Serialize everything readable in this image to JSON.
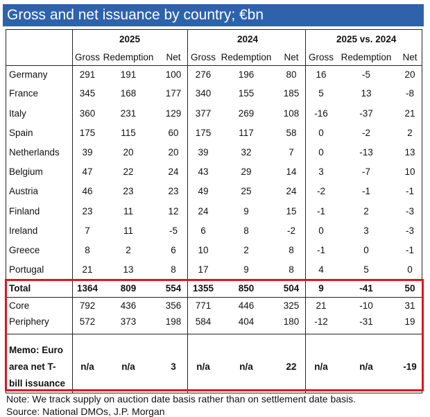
{
  "title": "Gross and net issuance by country; €bn",
  "groups": [
    "2025",
    "2024",
    "2025 vs. 2024"
  ],
  "subheaders": [
    "Gross",
    "Redemption",
    "Net",
    "Gross",
    "Redemption",
    "Net",
    "Gross",
    "Redemption",
    "Net"
  ],
  "rows": [
    {
      "label": "Germany",
      "values": [
        "291",
        "191",
        "100",
        "276",
        "196",
        "80",
        "16",
        "-5",
        "20"
      ]
    },
    {
      "label": "France",
      "values": [
        "345",
        "168",
        "177",
        "340",
        "155",
        "185",
        "5",
        "13",
        "-8"
      ]
    },
    {
      "label": "Italy",
      "values": [
        "360",
        "231",
        "129",
        "377",
        "269",
        "108",
        "-16",
        "-37",
        "21"
      ]
    },
    {
      "label": "Spain",
      "values": [
        "175",
        "115",
        "60",
        "175",
        "117",
        "58",
        "0",
        "-2",
        "2"
      ]
    },
    {
      "label": "Netherlands",
      "values": [
        "39",
        "20",
        "20",
        "39",
        "32",
        "7",
        "0",
        "-13",
        "13"
      ]
    },
    {
      "label": "Belgium",
      "values": [
        "47",
        "22",
        "24",
        "43",
        "29",
        "14",
        "3",
        "-7",
        "10"
      ]
    },
    {
      "label": "Austria",
      "values": [
        "46",
        "23",
        "23",
        "49",
        "25",
        "24",
        "-2",
        "-1",
        "-1"
      ]
    },
    {
      "label": "Finland",
      "values": [
        "23",
        "11",
        "12",
        "24",
        "9",
        "15",
        "-1",
        "2",
        "-3"
      ]
    },
    {
      "label": "Ireland",
      "values": [
        "7",
        "11",
        "-5",
        "6",
        "8",
        "-2",
        "0",
        "3",
        "-3"
      ]
    },
    {
      "label": "Greece",
      "values": [
        "8",
        "2",
        "6",
        "10",
        "2",
        "8",
        "-1",
        "0",
        "-1"
      ]
    },
    {
      "label": "Portugal",
      "values": [
        "21",
        "13",
        "8",
        "17",
        "9",
        "8",
        "4",
        "5",
        "0"
      ]
    }
  ],
  "total": {
    "label": "Total",
    "values": [
      "1364",
      "809",
      "554",
      "1355",
      "850",
      "504",
      "9",
      "-41",
      "50"
    ]
  },
  "subrows": [
    {
      "label": "Core",
      "values": [
        "792",
        "436",
        "356",
        "771",
        "446",
        "325",
        "21",
        "-10",
        "31"
      ]
    },
    {
      "label": "Periphery",
      "values": [
        "572",
        "373",
        "198",
        "584",
        "404",
        "180",
        "-12",
        "-31",
        "19"
      ]
    }
  ],
  "memo": {
    "label_lines": [
      "Memo: Euro",
      "area net T-",
      "bill issuance"
    ],
    "values": [
      "n/a",
      "n/a",
      "3",
      "n/a",
      "n/a",
      "22",
      "n/a",
      "n/a",
      "-19"
    ]
  },
  "note": "Note: We track supply on auction date basis rather than on settlement date basis.",
  "source": "Source: National DMOs, J.P. Morgan",
  "colors": {
    "title_bg": "#2e62ab",
    "highlight": "#e0141e"
  }
}
